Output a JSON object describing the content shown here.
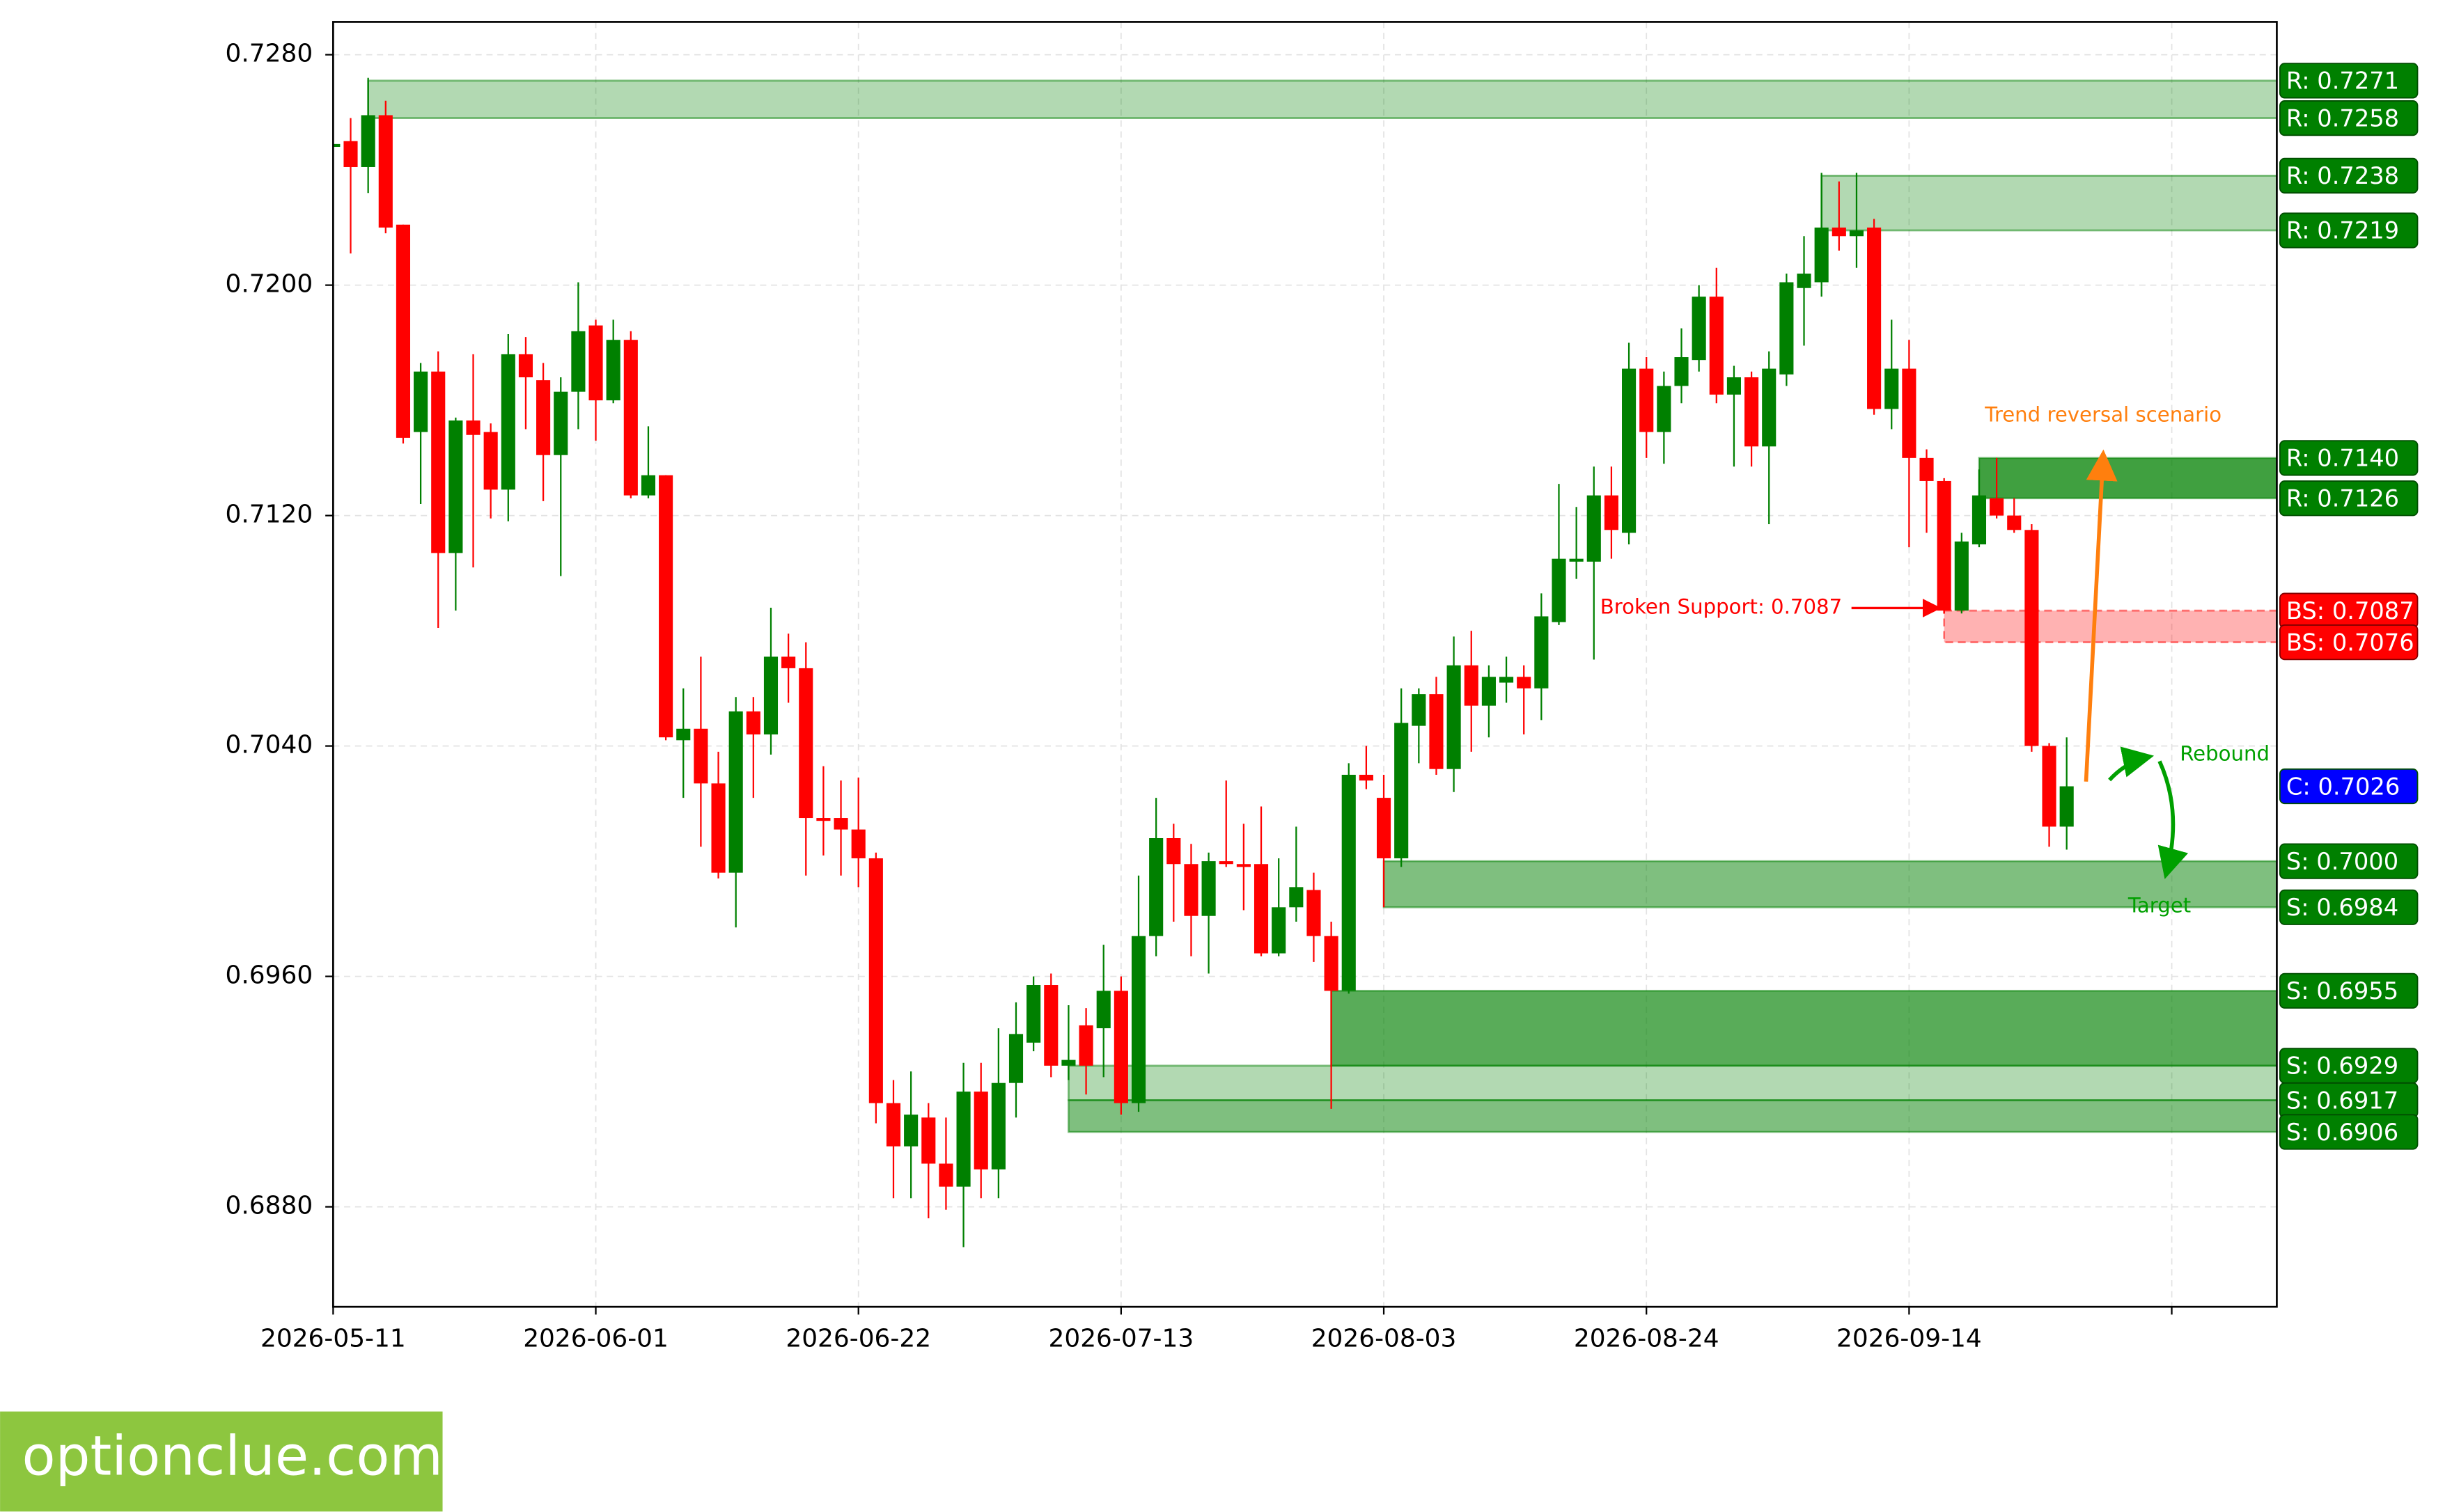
{
  "chart_data": {
    "type": "candlestick",
    "categories": [
      "2026-05-11",
      "2026-05-12",
      "2026-05-13",
      "2026-05-14",
      "2026-05-15",
      "2026-05-18",
      "2026-05-19",
      "2026-05-20",
      "2026-05-21",
      "2026-05-22",
      "2026-05-25",
      "2026-05-26",
      "2026-05-27",
      "2026-05-28",
      "2026-05-29",
      "2026-06-01",
      "2026-06-02",
      "2026-06-03",
      "2026-06-04",
      "2026-06-05",
      "2026-06-08",
      "2026-06-09",
      "2026-06-10",
      "2026-06-11",
      "2026-06-12",
      "2026-06-15",
      "2026-06-16",
      "2026-06-17",
      "2026-06-18",
      "2026-06-19",
      "2026-06-22",
      "2026-06-23",
      "2026-06-24",
      "2026-06-25",
      "2026-06-26",
      "2026-06-29",
      "2026-06-30",
      "2026-07-01",
      "2026-07-02",
      "2026-07-03",
      "2026-07-06",
      "2026-07-07",
      "2026-07-08",
      "2026-07-09",
      "2026-07-10",
      "2026-07-13",
      "2026-07-14",
      "2026-07-15",
      "2026-07-16",
      "2026-07-17",
      "2026-07-20",
      "2026-07-21",
      "2026-07-22",
      "2026-07-23",
      "2026-07-24",
      "2026-07-27",
      "2026-07-28",
      "2026-07-29",
      "2026-07-30",
      "2026-07-31",
      "2026-08-03",
      "2026-08-04",
      "2026-08-05",
      "2026-08-06",
      "2026-08-07",
      "2026-08-10",
      "2026-08-11",
      "2026-08-12",
      "2026-08-13",
      "2026-08-14",
      "2026-08-17",
      "2026-08-18",
      "2026-08-19",
      "2026-08-20",
      "2026-08-21",
      "2026-08-24",
      "2026-08-25",
      "2026-08-26",
      "2026-08-27",
      "2026-08-28",
      "2026-08-31",
      "2026-09-01",
      "2026-09-02",
      "2026-09-03",
      "2026-09-04",
      "2026-09-07",
      "2026-09-08",
      "2026-09-09",
      "2026-09-10",
      "2026-09-11",
      "2026-09-14",
      "2026-09-15",
      "2026-09-16",
      "2026-09-17",
      "2026-09-18",
      "2026-09-21",
      "2026-09-22",
      "2026-09-23",
      "2026-09-24",
      "2026-09-25"
    ],
    "open": [
      0.7248,
      0.725,
      0.7241,
      0.7259,
      0.7221,
      0.7149,
      0.717,
      0.7107,
      0.7153,
      0.7149,
      0.7129,
      0.7176,
      0.7167,
      0.7141,
      0.7163,
      0.7186,
      0.716,
      0.7181,
      0.7127,
      0.7134,
      0.7042,
      0.7046,
      0.7027,
      0.6996,
      0.7052,
      0.7044,
      0.7071,
      0.7067,
      0.7015,
      0.7015,
      0.7011,
      0.7001,
      0.6916,
      0.6901,
      0.6911,
      0.6895,
      0.6887,
      0.692,
      0.6893,
      0.6923,
      0.6937,
      0.6957,
      0.6929,
      0.6943,
      0.6942,
      0.6955,
      0.6916,
      0.6974,
      0.7008,
      0.6999,
      0.6981,
      0.7,
      0.6999,
      0.6999,
      0.6968,
      0.6984,
      0.699,
      0.6974,
      0.6955,
      0.703,
      0.7022,
      0.7001,
      0.7047,
      0.7058,
      0.7032,
      0.7068,
      0.7054,
      0.7062,
      0.7064,
      0.706,
      0.7083,
      0.7104,
      0.7104,
      0.7127,
      0.7114,
      0.7171,
      0.7149,
      0.7165,
      0.7174,
      0.7196,
      0.7162,
      0.7168,
      0.7144,
      0.7169,
      0.7199,
      0.7201,
      0.722,
      0.7217,
      0.722,
      0.7157,
      0.7171,
      0.714,
      0.7132,
      0.7087,
      0.711,
      0.7126,
      0.712,
      0.7115,
      0.704,
      0.7012
    ],
    "high": [
      0.725,
      0.7258,
      0.7272,
      0.7264,
      0.7221,
      0.7173,
      0.7177,
      0.7154,
      0.7176,
      0.7152,
      0.7183,
      0.7182,
      0.7173,
      0.7168,
      0.7201,
      0.7188,
      0.7188,
      0.7184,
      0.7151,
      0.7134,
      0.706,
      0.7071,
      0.7038,
      0.7057,
      0.7057,
      0.7088,
      0.7079,
      0.7076,
      0.7033,
      0.7028,
      0.7029,
      0.7003,
      0.6924,
      0.6927,
      0.6916,
      0.6911,
      0.693,
      0.693,
      0.6942,
      0.6951,
      0.696,
      0.6961,
      0.695,
      0.6949,
      0.6971,
      0.696,
      0.6995,
      0.7022,
      0.7013,
      0.7006,
      0.7003,
      0.7028,
      0.7013,
      0.7019,
      0.7001,
      0.7012,
      0.6996,
      0.6979,
      0.7034,
      0.704,
      0.703,
      0.706,
      0.706,
      0.7064,
      0.7078,
      0.708,
      0.7068,
      0.7071,
      0.7068,
      0.7093,
      0.7131,
      0.7123,
      0.7137,
      0.7137,
      0.718,
      0.7175,
      0.717,
      0.7185,
      0.72,
      0.7206,
      0.7172,
      0.717,
      0.7177,
      0.7204,
      0.7217,
      0.7239,
      0.7236,
      0.7239,
      0.7223,
      0.7188,
      0.7181,
      0.7143,
      0.7133,
      0.7114,
      0.7136,
      0.714,
      0.7126,
      0.7117,
      0.7041,
      0.7043
    ],
    "low": [
      0.7247,
      0.7211,
      0.7232,
      0.7218,
      0.7145,
      0.7124,
      0.7081,
      0.7087,
      0.7102,
      0.7119,
      0.7118,
      0.715,
      0.7125,
      0.7099,
      0.715,
      0.7146,
      0.7159,
      0.7126,
      0.7126,
      0.7042,
      0.7022,
      0.7005,
      0.6994,
      0.6977,
      0.7022,
      0.7037,
      0.7055,
      0.6995,
      0.7002,
      0.6995,
      0.6991,
      0.6909,
      0.6883,
      0.6883,
      0.6876,
      0.6879,
      0.6866,
      0.6883,
      0.6883,
      0.6911,
      0.6934,
      0.6925,
      0.6924,
      0.6919,
      0.6925,
      0.6912,
      0.6913,
      0.6967,
      0.6979,
      0.6967,
      0.6961,
      0.6998,
      0.6983,
      0.6967,
      0.6967,
      0.6979,
      0.6965,
      0.6914,
      0.6954,
      0.7025,
      0.6984,
      0.6998,
      0.7034,
      0.703,
      0.7024,
      0.7038,
      0.7043,
      0.7055,
      0.7044,
      0.7049,
      0.7082,
      0.7098,
      0.707,
      0.7105,
      0.711,
      0.714,
      0.7138,
      0.7159,
      0.717,
      0.7159,
      0.7137,
      0.7137,
      0.7117,
      0.7165,
      0.7179,
      0.7196,
      0.7212,
      0.7206,
      0.7155,
      0.715,
      0.7109,
      0.7114,
      0.7086,
      0.7086,
      0.7109,
      0.7119,
      0.7114,
      0.7038,
      0.7005,
      0.7004
    ],
    "close": [
      0.7249,
      0.7241,
      0.7259,
      0.722,
      0.7147,
      0.717,
      0.7107,
      0.7153,
      0.7148,
      0.7129,
      0.7176,
      0.7168,
      0.7141,
      0.7163,
      0.7184,
      0.716,
      0.7181,
      0.7127,
      0.7134,
      0.7043,
      0.7046,
      0.7027,
      0.6996,
      0.7052,
      0.7044,
      0.7071,
      0.7067,
      0.7015,
      0.7014,
      0.7011,
      0.7001,
      0.6916,
      0.6901,
      0.6912,
      0.6895,
      0.6887,
      0.692,
      0.6893,
      0.6923,
      0.694,
      0.6957,
      0.6929,
      0.6931,
      0.6929,
      0.6955,
      0.6916,
      0.6974,
      0.7008,
      0.6999,
      0.6981,
      0.7,
      0.6999,
      0.6998,
      0.6968,
      0.6984,
      0.6991,
      0.6974,
      0.6955,
      0.703,
      0.7028,
      0.7001,
      0.7048,
      0.7058,
      0.7032,
      0.7068,
      0.7054,
      0.7064,
      0.7064,
      0.706,
      0.7085,
      0.7105,
      0.7105,
      0.7127,
      0.7115,
      0.7171,
      0.7149,
      0.7165,
      0.7175,
      0.7196,
      0.7162,
      0.7168,
      0.7144,
      0.7171,
      0.7201,
      0.7204,
      0.722,
      0.7217,
      0.7219,
      0.7157,
      0.7171,
      0.714,
      0.7132,
      0.7087,
      0.7111,
      0.7127,
      0.712,
      0.7115,
      0.704,
      0.7012,
      0.7026
    ],
    "up_color": "#008000",
    "down_color": "#ff0000",
    "xlim": [
      0,
      111
    ],
    "xticks": [
      {
        "value": 0,
        "label": "2026-05-11"
      },
      {
        "value": 15,
        "label": "2026-06-01"
      },
      {
        "value": 30,
        "label": "2026-06-22"
      },
      {
        "value": 45,
        "label": "2026-07-13"
      },
      {
        "value": 60,
        "label": "2026-08-03"
      },
      {
        "value": 75,
        "label": "2026-08-24"
      },
      {
        "value": 90,
        "label": "2026-09-14"
      },
      {
        "value": 105,
        "label": null
      }
    ],
    "ylim": [
      0.68453,
      0.72914
    ],
    "yticks": [
      {
        "value": 0.688,
        "label": "0.6880"
      },
      {
        "value": 0.696,
        "label": "0.6960"
      },
      {
        "value": 0.704,
        "label": "0.7040"
      },
      {
        "value": 0.712,
        "label": "0.7120"
      },
      {
        "value": 0.72,
        "label": "0.7200"
      },
      {
        "value": 0.728,
        "label": "0.7280"
      }
    ],
    "grid": true,
    "zones": [
      {
        "levels": [
          0.7271,
          0.7258
        ],
        "start": 2,
        "color": "#008000",
        "opacity": 0.3
      },
      {
        "levels": [
          0.7238,
          0.7219
        ],
        "start": 85,
        "color": "#008000",
        "opacity": 0.3
      },
      {
        "levels": [
          0.714,
          0.7126
        ],
        "start": 94,
        "color": "#008000",
        "opacity": 0.75
      },
      {
        "levels": [
          0.7087,
          0.7076
        ],
        "start": 92,
        "color": "#ff0000",
        "opacity": 0.3,
        "dashed": true
      },
      {
        "levels": [
          0.7,
          0.6984
        ],
        "start": 60,
        "color": "#008000",
        "opacity": 0.5
      },
      {
        "levels": [
          0.6955,
          0.6929
        ],
        "start": 57,
        "color": "#008000",
        "opacity": 0.65
      },
      {
        "levels": [
          0.6929,
          0.6917
        ],
        "start": 42,
        "color": "#008000",
        "opacity": 0.3
      },
      {
        "levels": [
          0.6917,
          0.6906
        ],
        "start": 42,
        "color": "#008000",
        "opacity": 0.5
      }
    ],
    "level_labels": [
      {
        "value": 0.7271,
        "label": "R: 0.7271",
        "color": "#008000"
      },
      {
        "value": 0.7258,
        "label": "R: 0.7258",
        "color": "#008000"
      },
      {
        "value": 0.7238,
        "label": "R: 0.7238",
        "color": "#008000"
      },
      {
        "value": 0.7219,
        "label": "R: 0.7219",
        "color": "#008000"
      },
      {
        "value": 0.714,
        "label": "R: 0.7140",
        "color": "#008000"
      },
      {
        "value": 0.7126,
        "label": "R: 0.7126",
        "color": "#008000"
      },
      {
        "value": 0.7087,
        "label": "BS: 0.7087",
        "color": "#ff0000"
      },
      {
        "value": 0.7076,
        "label": "BS: 0.7076",
        "color": "#ff0000"
      },
      {
        "value": 0.7026,
        "label": "C: 0.7026",
        "color": "#0000ff"
      },
      {
        "value": 0.7,
        "label": "S: 0.7000",
        "color": "#008000"
      },
      {
        "value": 0.6984,
        "label": "S: 0.6984",
        "color": "#008000"
      },
      {
        "value": 0.6955,
        "label": "S: 0.6955",
        "color": "#008000"
      },
      {
        "value": 0.6917,
        "label": "S: 0.6917",
        "color": "#008000"
      },
      {
        "value": 0.6929,
        "label": "S: 0.6929",
        "color": "#008000"
      },
      {
        "value": 0.6906,
        "label": "S: 0.6906",
        "color": "#008000"
      }
    ],
    "annotations": {
      "broken_support": "Broken Support: 0.7087",
      "trend_reversal": "Trend reversal scenario",
      "rebound": "Rebound",
      "target": "Target"
    },
    "watermark": "optionclue.com"
  }
}
